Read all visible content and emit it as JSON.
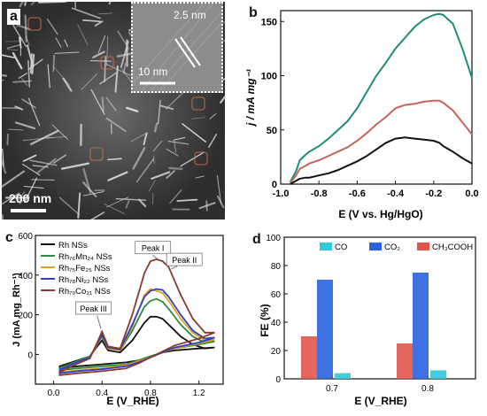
{
  "panel_a": {
    "label": "a",
    "scale_bar": "200 nm",
    "inset_scale_bar": "10 nm",
    "inset_lattice": "2.5 nm"
  },
  "chart_data": [
    {
      "panel": "b",
      "type": "line",
      "xlabel": "E (V vs. Hg/HgO)",
      "ylabel": "j / mA mg⁻¹",
      "xlim": [
        -1.0,
        0.0
      ],
      "ylim": [
        0,
        160
      ],
      "xticks": [
        "-1.0",
        "-0.8",
        "-0.6",
        "-0.4",
        "-0.2",
        "0.0"
      ],
      "yticks": [
        "0",
        "50",
        "100",
        "150"
      ],
      "grid": false,
      "colors": [
        "#1f8c78",
        "#c8625a",
        "#111111"
      ],
      "series": [
        {
          "x": [
            -0.95,
            -0.92,
            -0.9,
            -0.87,
            -0.85,
            -0.8,
            -0.75,
            -0.7,
            -0.65,
            -0.6,
            -0.55,
            -0.5,
            -0.45,
            -0.4,
            -0.35,
            -0.3,
            -0.25,
            -0.2,
            -0.17,
            -0.15,
            -0.1,
            -0.05,
            0.0
          ],
          "y": [
            2,
            12,
            22,
            27,
            30,
            35,
            42,
            50,
            58,
            70,
            85,
            100,
            112,
            125,
            135,
            145,
            152,
            156,
            157,
            156,
            148,
            125,
            98
          ]
        },
        {
          "x": [
            -0.95,
            -0.92,
            -0.9,
            -0.87,
            -0.85,
            -0.8,
            -0.75,
            -0.7,
            -0.65,
            -0.6,
            -0.55,
            -0.5,
            -0.45,
            -0.4,
            -0.35,
            -0.3,
            -0.25,
            -0.2,
            -0.17,
            -0.15,
            -0.1,
            -0.05,
            0.0
          ],
          "y": [
            1,
            8,
            14,
            17,
            19,
            22,
            26,
            30,
            34,
            40,
            47,
            55,
            62,
            70,
            73,
            74,
            76,
            77,
            77,
            75,
            68,
            57,
            46
          ]
        },
        {
          "x": [
            -0.95,
            -0.92,
            -0.9,
            -0.87,
            -0.85,
            -0.8,
            -0.75,
            -0.7,
            -0.65,
            -0.6,
            -0.55,
            -0.5,
            -0.45,
            -0.4,
            -0.35,
            -0.3,
            -0.25,
            -0.2,
            -0.17,
            -0.15,
            -0.1,
            -0.05,
            0.0
          ],
          "y": [
            0,
            3,
            5,
            6,
            6,
            8,
            10,
            13,
            17,
            21,
            26,
            32,
            38,
            42,
            43,
            42,
            41,
            40,
            38,
            35,
            30,
            24,
            19
          ]
        }
      ]
    },
    {
      "panel": "c",
      "type": "line",
      "xlabel": "E (V_RHE)",
      "ylabel": "J (mA mg_Rh⁻¹)",
      "xlim": [
        -0.15,
        1.4
      ],
      "ylim": [
        -150,
        600
      ],
      "xticks": [
        "0.0",
        "0.4",
        "0.8",
        "1.2"
      ],
      "yticks": [
        "0",
        "200",
        "400",
        "600"
      ],
      "grid": false,
      "legend_position": "top-left",
      "annotations": [
        "Peak I",
        "Peak II",
        "Peak III"
      ],
      "series": [
        {
          "name": "Rh NSs",
          "color": "#111111",
          "x": [
            0.05,
            0.15,
            0.3,
            0.36,
            0.4,
            0.45,
            0.55,
            0.65,
            0.75,
            0.8,
            0.85,
            0.9,
            0.95,
            1.05,
            1.15,
            1.25,
            1.33
          ],
          "y": [
            -60,
            -40,
            -10,
            40,
            70,
            20,
            10,
            70,
            160,
            190,
            190,
            180,
            150,
            90,
            50,
            30,
            35
          ],
          "x_back": [
            1.33,
            1.2,
            1.0,
            0.9,
            0.8,
            0.7,
            0.6,
            0.4,
            0.2,
            0.05
          ],
          "y_back": [
            35,
            30,
            20,
            10,
            -10,
            -30,
            -40,
            -50,
            -60,
            -70
          ]
        },
        {
          "name": "Rh₇₆Mn₂₄ NSs",
          "color": "#2e8b3a",
          "x": [
            0.05,
            0.15,
            0.3,
            0.36,
            0.4,
            0.45,
            0.55,
            0.65,
            0.75,
            0.8,
            0.85,
            0.9,
            0.95,
            1.05,
            1.15,
            1.25,
            1.33
          ],
          "y": [
            -70,
            -45,
            -10,
            50,
            90,
            30,
            20,
            120,
            240,
            270,
            280,
            265,
            230,
            150,
            90,
            60,
            65
          ],
          "x_back": [
            1.33,
            1.2,
            1.0,
            0.9,
            0.8,
            0.7,
            0.6,
            0.4,
            0.2,
            0.05
          ],
          "y_back": [
            65,
            50,
            30,
            10,
            -10,
            -30,
            -50,
            -60,
            -70,
            -80
          ]
        },
        {
          "name": "Rh₇₅Fe₂₅ NSs",
          "color": "#e0a019",
          "x": [
            0.05,
            0.15,
            0.3,
            0.36,
            0.4,
            0.45,
            0.55,
            0.65,
            0.75,
            0.8,
            0.85,
            0.9,
            0.95,
            1.05,
            1.15,
            1.25,
            1.33
          ],
          "y": [
            -80,
            -50,
            -15,
            50,
            100,
            30,
            20,
            140,
            300,
            330,
            320,
            310,
            270,
            180,
            110,
            70,
            75
          ],
          "x_back": [
            1.33,
            1.2,
            1.0,
            0.9,
            0.8,
            0.7,
            0.6,
            0.4,
            0.2,
            0.05
          ],
          "y_back": [
            75,
            55,
            30,
            10,
            -15,
            -35,
            -55,
            -70,
            -80,
            -90
          ]
        },
        {
          "name": "Rh₇₈Ni₂₂ NSs",
          "color": "#2b3fd1",
          "x": [
            0.05,
            0.15,
            0.3,
            0.36,
            0.4,
            0.45,
            0.55,
            0.65,
            0.75,
            0.8,
            0.85,
            0.9,
            0.95,
            1.05,
            1.15,
            1.25,
            1.33
          ],
          "y": [
            -80,
            -50,
            -15,
            55,
            100,
            35,
            25,
            150,
            290,
            320,
            330,
            325,
            290,
            200,
            120,
            80,
            85
          ],
          "x_back": [
            1.33,
            1.2,
            1.0,
            0.9,
            0.8,
            0.7,
            0.6,
            0.4,
            0.2,
            0.05
          ],
          "y_back": [
            85,
            60,
            35,
            10,
            -15,
            -40,
            -60,
            -75,
            -85,
            -95
          ]
        },
        {
          "name": "Rh₇₉Co₂₁ NSs",
          "color": "#8b3a2a",
          "x": [
            0.05,
            0.15,
            0.3,
            0.36,
            0.4,
            0.45,
            0.55,
            0.65,
            0.75,
            0.8,
            0.85,
            0.9,
            0.95,
            1.05,
            1.15,
            1.25,
            1.33
          ],
          "y": [
            -90,
            -60,
            -20,
            60,
            115,
            40,
            30,
            200,
            410,
            470,
            480,
            470,
            440,
            300,
            180,
            110,
            110
          ],
          "x_back": [
            1.33,
            1.2,
            1.0,
            0.9,
            0.8,
            0.7,
            0.6,
            0.4,
            0.2,
            0.05
          ],
          "y_back": [
            110,
            80,
            45,
            15,
            -15,
            -45,
            -70,
            -85,
            -95,
            -105
          ]
        }
      ]
    },
    {
      "panel": "d",
      "type": "bar",
      "xlabel": "E (V_RHE)",
      "ylabel": "FE (%)",
      "categories": [
        "0.7",
        "0.8"
      ],
      "ylim": [
        0,
        100
      ],
      "yticks": [
        "0",
        "20",
        "40",
        "60",
        "80",
        "100"
      ],
      "grid": false,
      "legend_position": "top",
      "series": [
        {
          "name": "CO",
          "color": "#31c8d8",
          "values": [
            4,
            6
          ]
        },
        {
          "name": "CO₂",
          "color": "#2a62e0",
          "values": [
            70,
            75
          ]
        },
        {
          "name": "CH₃COOH",
          "color": "#e0554e",
          "values": [
            30,
            25
          ]
        }
      ]
    }
  ]
}
